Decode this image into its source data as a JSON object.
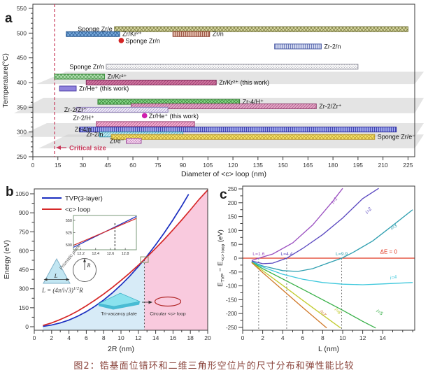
{
  "caption": "图2：锆基面位错环和二维三角形空位片的尺寸分布和弹性能比较",
  "chart_data": [
    {
      "id": "a",
      "panel_letter": "a",
      "type": "bar",
      "xlabel": "Diameter of <c> loop (nm)",
      "ylabel": "Temperature(°C)",
      "xlim": [
        0,
        229
      ],
      "ylim": [
        250,
        550
      ],
      "xticks": [
        0,
        15,
        30,
        45,
        60,
        75,
        90,
        105,
        120,
        135,
        150,
        165,
        180,
        195,
        210,
        225
      ],
      "yticks": [
        250,
        300,
        350,
        400,
        450,
        500,
        550
      ],
      "critical_size": {
        "x": 13,
        "label": "Critical size",
        "color": "#c8395a"
      },
      "shadow_bands": [
        {
          "t": [
            397,
            422
          ],
          "tip": 52
        },
        {
          "t": [
            338,
            369
          ],
          "tip": 20
        },
        {
          "t": [
            290,
            318
          ],
          "tip": 25
        },
        {
          "t": [
            267,
            295
          ],
          "tip": 55
        }
      ],
      "bars": [
        {
          "label": "Sponge Zr/e",
          "temp": 508,
          "range": [
            49,
            225
          ],
          "fill": "#d9d9a6",
          "edge": "#6e6e2e",
          "hatch": "cross",
          "side": "left"
        },
        {
          "label": "Zr/Kr²⁺",
          "temp": 498,
          "range": [
            20,
            52
          ],
          "fill": "#7cadde",
          "edge": "#24558f",
          "hatch": "cross",
          "side": "right"
        },
        {
          "label": "Zr/n",
          "temp": 498,
          "range": [
            84,
            106
          ],
          "fill": "#dfb9a9",
          "edge": "#8a3a2a",
          "hatch": "vert",
          "side": "right"
        },
        {
          "label": "Zr-2/n",
          "temp": 473,
          "range": [
            145,
            173
          ],
          "fill": "#d3daf0",
          "edge": "#5060a8",
          "hatch": "vert",
          "side": "right"
        },
        {
          "label": "Sponge Zr/n",
          "temp": 432,
          "range": [
            44,
            195
          ],
          "fill": "#ffffff",
          "edge": "#8f8f9a",
          "hatch": "dots",
          "side": "left"
        },
        {
          "label": "Zr/Kr²⁺",
          "temp": 412,
          "range": [
            13,
            43
          ],
          "fill": "#b8e2b8",
          "edge": "#3f8f3f",
          "hatch": "cross",
          "side": "right"
        },
        {
          "label": "Zr/Kr²⁺ (this work)",
          "temp": 400,
          "range": [
            32,
            110
          ],
          "fill": "#d0719e",
          "edge": "#7f2f5c",
          "hatch": "diag",
          "side": "right"
        },
        {
          "label": "Zr/He⁺ (this work)",
          "temp": 388,
          "range": [
            16,
            26
          ],
          "fill": "#9083dd",
          "edge": "#4f3fa8",
          "hatch": "none",
          "side": "right"
        },
        {
          "label": "Zr-4/H⁺",
          "temp": 361,
          "range": [
            39,
            124
          ],
          "fill": "#8ad88a",
          "edge": "#2f7f2f",
          "hatch": "cross",
          "side": "right"
        },
        {
          "label": "Zr-2/Zr⁺",
          "temp": 352,
          "range": [
            59,
            170
          ],
          "fill": "#e5a5c6",
          "edge": "#8f3f6f",
          "hatch": "diag",
          "side": "right"
        },
        {
          "label": "Zr-2/Zr⁺",
          "temp": 345,
          "range": [
            26,
            81
          ],
          "fill": "#f0ebf9",
          "edge": "#8f7fb8",
          "hatch": "diag",
          "side": "left",
          "dx": 18
        },
        {
          "label": "Zr-2/H⁺",
          "temp": 316,
          "range": [
            38,
            97
          ],
          "fill": "#f2abce",
          "edge": "#a04878",
          "hatch": "diag",
          "side": "left",
          "dy": -9
        },
        {
          "label": "Zr-4/n",
          "temp": 305,
          "range": [
            28,
            218
          ],
          "fill": "#9da7ea",
          "edge": "#2828a0",
          "hatch": "vert",
          "side": "left",
          "dx": 20
        },
        {
          "label": "Zr-2/n",
          "temp": 295,
          "range": [
            40,
            90
          ],
          "fill": "#c2eaf2",
          "edge": "#2f8fa8",
          "hatch": "diag",
          "side": "left",
          "dx": 8
        },
        {
          "label": "Sponge Zr/e⁻",
          "temp": 290,
          "range": [
            47,
            205
          ],
          "fill": "#f7e56c",
          "edge": "#b8962a",
          "hatch": "cross",
          "side": "right"
        },
        {
          "label": "Zr/e⁻",
          "temp": 282,
          "range": [
            56,
            65
          ],
          "fill": "#f7d6ef",
          "edge": "#9a4a9a",
          "hatch": "dots",
          "side": "left"
        }
      ],
      "points": [
        {
          "label": "Sponge Zr/n",
          "x": 53,
          "temp": 485,
          "color": "#d42424"
        },
        {
          "label": "Zr/He⁺ (this work)",
          "x": 67,
          "temp": 333,
          "color": "#cf1fae"
        }
      ]
    },
    {
      "id": "b",
      "panel_letter": "b",
      "type": "line",
      "xlabel": "2R (nm)",
      "ylabel": "Energy (eV)",
      "xlim": [
        0,
        20
      ],
      "ylim": [
        0,
        1080
      ],
      "xticks": [
        0,
        2,
        4,
        6,
        8,
        10,
        12,
        14,
        16,
        18,
        20
      ],
      "yticks": [
        0,
        150,
        300,
        450,
        600,
        750,
        900,
        1050
      ],
      "series": [
        {
          "name": "TVP(3-layer)",
          "color": "#1b2fc0",
          "x": [
            1,
            2,
            3,
            4,
            5,
            6,
            7,
            8,
            9,
            10,
            11,
            12,
            12.7,
            13,
            14,
            15,
            16,
            17,
            17.8
          ],
          "y": [
            3,
            13,
            30,
            53,
            83,
            119,
            162,
            211,
            267,
            330,
            399,
            475,
            532,
            558,
            647,
            743,
            845,
            954,
            1046
          ]
        },
        {
          "name": "<c> loop",
          "color": "#d62828",
          "x": [
            1,
            2,
            3,
            4,
            5,
            6,
            7,
            8,
            9,
            10,
            11,
            12,
            12.7,
            13,
            14,
            15,
            16,
            17,
            18,
            19,
            20
          ],
          "y": [
            10,
            30,
            57,
            88,
            124,
            165,
            210,
            258,
            310,
            366,
            424,
            486,
            532,
            551,
            620,
            691,
            766,
            843,
            923,
            1006,
            1080
          ]
        }
      ],
      "crossover": {
        "x": 12.7,
        "y": 530
      },
      "region_colors": {
        "left": "#d7ebf7",
        "right": "#f9cade"
      },
      "inset": {
        "xlim": [
          12.1,
          12.95
        ],
        "ylim": [
          490,
          560
        ],
        "xticks": [
          12.2,
          12.4,
          12.6,
          12.8
        ],
        "yticks": [
          500,
          525,
          550
        ],
        "dash_x": 12.66,
        "blue": {
          "x": [
            12.1,
            12.95
          ],
          "y": [
            495,
            558
          ]
        },
        "red": {
          "x": [
            12.1,
            12.95
          ],
          "y": [
            499,
            554
          ]
        }
      },
      "annotations": {
        "formula": {
          "base": "L = (4π/i√3)",
          "sup": "1/2",
          "tail": "R"
        },
        "triangle_label": "Prismatic plane",
        "L_label": "L",
        "R_label": "R",
        "plate_label": "Tri-vacancy plate",
        "loop_label": "Circular <c> loop"
      }
    },
    {
      "id": "c",
      "panel_letter": "c",
      "type": "line",
      "xlabel": "L (nm)",
      "ylabel_parts": [
        [
          "E",
          0
        ],
        [
          "TVP",
          1
        ],
        [
          " − E",
          0
        ],
        [
          "<c> loop",
          1
        ],
        [
          " (eV)",
          0
        ]
      ],
      "xlim": [
        0,
        17.2
      ],
      "ylim": [
        -250,
        250
      ],
      "xticks": [
        0,
        2,
        4,
        6,
        8,
        10,
        12,
        14
      ],
      "yticks": [
        -250,
        -200,
        -150,
        -100,
        -50,
        0,
        50,
        100,
        150,
        200,
        250
      ],
      "zero_line": {
        "color": "#e03822",
        "label": "ΔE = 0",
        "label_at": [
          14.6,
          16
        ]
      },
      "markers": [
        {
          "label": "L=1.6",
          "x": 1.6,
          "color": "#9a4fc0"
        },
        {
          "label": "L=4.4",
          "x": 4.4,
          "color": "#5a48c0"
        },
        {
          "label": "L=9.9",
          "x": 9.9,
          "color": "#2f9fb0"
        }
      ],
      "series": [
        {
          "name": "i=1",
          "color": "#9a4fc0",
          "x": [
            0.9,
            1.6,
            3,
            5,
            7,
            9,
            10
          ],
          "y": [
            -8,
            0,
            15,
            55,
            120,
            205,
            252
          ],
          "label_at": [
            9.3,
            205
          ],
          "rot": -55
        },
        {
          "name": "i=2",
          "color": "#5a48c0",
          "x": [
            0.9,
            2,
            3,
            4.4,
            6,
            8,
            10,
            12,
            13.6
          ],
          "y": [
            -10,
            -20,
            -18,
            0,
            35,
            85,
            145,
            215,
            252
          ],
          "label_at": [
            12.7,
            168
          ],
          "rot": -50
        },
        {
          "name": "i=3",
          "color": "#2f9fb0",
          "x": [
            0.9,
            2,
            4,
            5.5,
            7,
            8.5,
            9.9,
            11,
            13,
            15,
            17
          ],
          "y": [
            -12,
            -28,
            -45,
            -48,
            -38,
            -18,
            0,
            20,
            62,
            118,
            175
          ],
          "label_at": [
            15.2,
            108
          ],
          "rot": -38
        },
        {
          "name": "i=4",
          "color": "#3fc8dc",
          "x": [
            0.9,
            2,
            4,
            6,
            8,
            10,
            12,
            14,
            17
          ],
          "y": [
            -14,
            -32,
            -58,
            -76,
            -88,
            -94,
            -96,
            -93,
            -88
          ],
          "label_at": [
            15.1,
            -75
          ],
          "rot": -10
        },
        {
          "name": "i=5",
          "color": "#38b048",
          "x": [
            0.9,
            2,
            4,
            6,
            8,
            10,
            12,
            13.3
          ],
          "y": [
            -15,
            -38,
            -75,
            -112,
            -150,
            -188,
            -228,
            -252
          ],
          "label_at": [
            13.6,
            -200
          ],
          "rot": 34
        },
        {
          "name": "i=6",
          "color": "#c2cc30",
          "x": [
            0.9,
            2,
            4,
            6,
            8,
            9.8
          ],
          "y": [
            -16,
            -45,
            -98,
            -152,
            -205,
            -252
          ],
          "label_at": [
            9.4,
            -195
          ],
          "rot": 44
        },
        {
          "name": "i=7",
          "color": "#d07828",
          "x": [
            0.9,
            2,
            4,
            6,
            8.4
          ],
          "y": [
            -16,
            -52,
            -115,
            -178,
            -252
          ],
          "label_at": [
            7.9,
            -202
          ],
          "rot": 50
        }
      ]
    }
  ]
}
